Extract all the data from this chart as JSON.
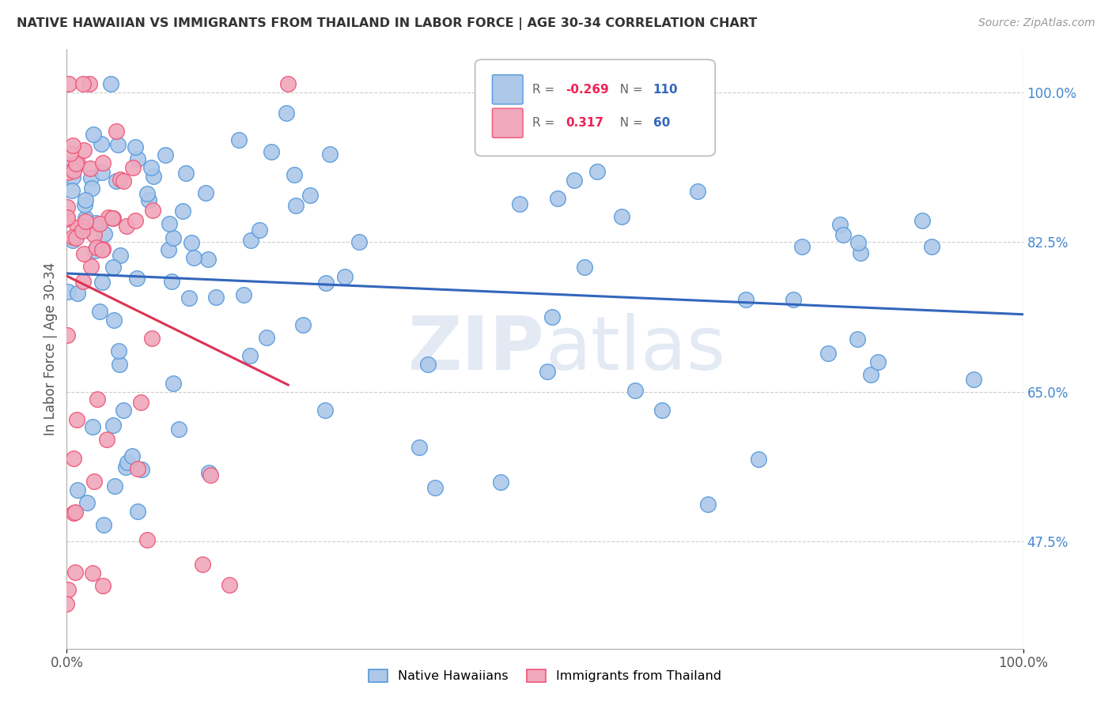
{
  "title": "NATIVE HAWAIIAN VS IMMIGRANTS FROM THAILAND IN LABOR FORCE | AGE 30-34 CORRELATION CHART",
  "source": "Source: ZipAtlas.com",
  "ylabel": "In Labor Force | Age 30-34",
  "xlim": [
    0.0,
    1.0
  ],
  "ylim": [
    0.35,
    1.05
  ],
  "ytick_labels": [
    "47.5%",
    "65.0%",
    "82.5%",
    "100.0%"
  ],
  "ytick_values": [
    0.475,
    0.65,
    0.825,
    1.0
  ],
  "xtick_labels": [
    "0.0%",
    "100.0%"
  ],
  "xtick_values": [
    0.0,
    1.0
  ],
  "blue_R": "-0.269",
  "blue_N": "110",
  "pink_R": "0.317",
  "pink_N": "60",
  "blue_color": "#adc8e8",
  "pink_color": "#f0a8bc",
  "blue_edge_color": "#5599dd",
  "pink_edge_color": "#ee5577",
  "blue_line_color": "#3366bb",
  "pink_line_color": "#dd3355",
  "watermark": "ZIPatlas",
  "title_color": "#333333",
  "source_color": "#999999",
  "ytick_color": "#4488cc",
  "grid_color": "#cccccc"
}
